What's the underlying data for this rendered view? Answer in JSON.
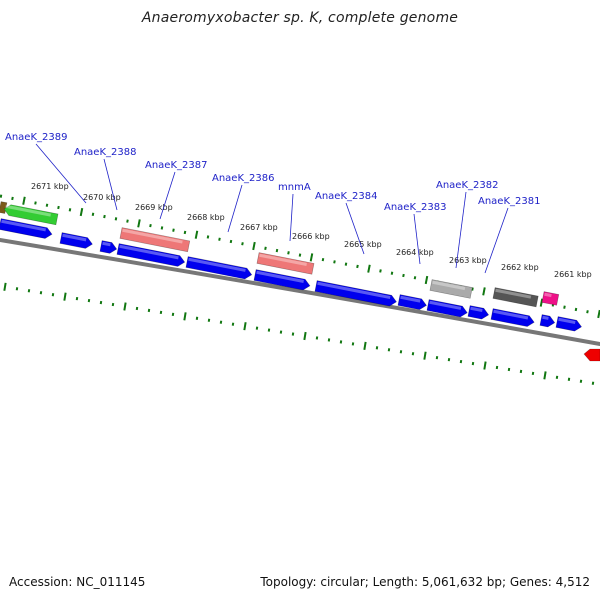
{
  "title": "Anaeromyxobacter sp. K, complete genome",
  "footer": {
    "accession": "Accession: NC_011145",
    "summary": "Topology: circular; Length: 5,061,632 bp; Genes: 4,512"
  },
  "colors": {
    "forward_gene": "#0000ee",
    "reverse_gene_green": "#33cc33",
    "rna_salmon": "#ee7777",
    "pseudo_gray": "#aaaaaa",
    "dark_gray": "#555555",
    "magenta": "#ee1188",
    "red": "#ee0000",
    "tick_green": "#117711",
    "backbone": "#777777",
    "label_blue": "#1f22c8"
  },
  "scale_labels": [
    "2671 kbp",
    "2670 kbp",
    "2669 kbp",
    "2668 kbp",
    "2667 kbp",
    "2666 kbp",
    "2665 kbp",
    "2664 kbp",
    "2663 kbp",
    "2662 kbp",
    "2661 kbp"
  ],
  "gene_labels": [
    "AnaeK_2389",
    "AnaeK_2388",
    "AnaeK_2387",
    "AnaeK_2386",
    "mnmA",
    "AnaeK_2384",
    "AnaeK_2383",
    "AnaeK_2382",
    "AnaeK_2381"
  ]
}
